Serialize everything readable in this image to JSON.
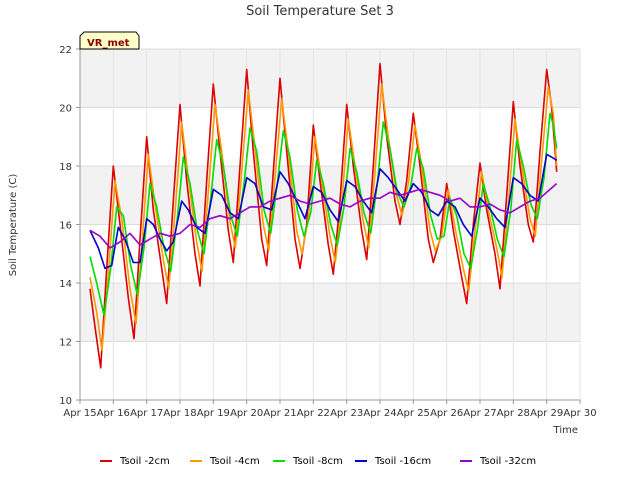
{
  "chart_data": {
    "type": "line",
    "title": "Soil Temperature Set 3",
    "xlabel": "Time",
    "ylabel": "Soil Temperature (C)",
    "station_tag": "VR_met",
    "ylim": [
      10,
      22
    ],
    "yticks": [
      10,
      12,
      14,
      16,
      18,
      20,
      22
    ],
    "xlim": [
      15,
      30
    ],
    "xticks": [
      15,
      16,
      17,
      18,
      19,
      20,
      21,
      22,
      23,
      24,
      25,
      26,
      27,
      28,
      29,
      30
    ],
    "xtick_labels": [
      "Apr 15",
      "Apr 16",
      "Apr 17",
      "Apr 18",
      "Apr 19",
      "Apr 20",
      "Apr 21",
      "Apr 22",
      "Apr 23",
      "Apr 24",
      "Apr 25",
      "Apr 26",
      "Apr 27",
      "Apr 28",
      "Apr 29",
      "Apr 30"
    ],
    "grid": true,
    "legend_position": "bottom",
    "series": [
      {
        "name": "Tsoil -2cm",
        "color": "#dd0000",
        "x": [
          15.3,
          15.45,
          15.62,
          15.8,
          16.0,
          16.2,
          16.45,
          16.62,
          16.8,
          17.0,
          17.2,
          17.45,
          17.6,
          17.8,
          18.0,
          18.2,
          18.45,
          18.6,
          18.8,
          19.0,
          19.2,
          19.45,
          19.6,
          19.8,
          20.0,
          20.2,
          20.45,
          20.6,
          20.8,
          21.0,
          21.2,
          21.45,
          21.6,
          21.8,
          22.0,
          22.2,
          22.45,
          22.6,
          22.8,
          23.0,
          23.2,
          23.45,
          23.6,
          23.8,
          24.0,
          24.2,
          24.45,
          24.6,
          24.8,
          25.0,
          25.2,
          25.45,
          25.6,
          25.8,
          26.0,
          26.2,
          26.45,
          26.6,
          26.8,
          27.0,
          27.2,
          27.45,
          27.6,
          27.8,
          28.0,
          28.2,
          28.45,
          28.6,
          28.8,
          29.0,
          29.15,
          29.3
        ],
        "values": [
          13.8,
          12.5,
          11.1,
          14.5,
          18.0,
          16.0,
          13.5,
          12.1,
          15.5,
          19.0,
          16.5,
          14.5,
          13.3,
          16.8,
          20.1,
          17.5,
          15.0,
          13.9,
          17.5,
          20.8,
          18.5,
          15.8,
          14.7,
          18.0,
          21.3,
          18.5,
          15.5,
          14.6,
          17.8,
          21.0,
          18.5,
          15.5,
          14.5,
          16.0,
          19.4,
          17.5,
          15.3,
          14.3,
          16.8,
          20.1,
          18.0,
          15.8,
          14.8,
          18.0,
          21.5,
          19.0,
          16.8,
          16.0,
          17.5,
          19.8,
          18.0,
          15.5,
          14.7,
          15.5,
          17.4,
          15.8,
          14.2,
          13.3,
          16.0,
          18.1,
          16.5,
          15.0,
          13.8,
          17.0,
          20.2,
          18.0,
          16.0,
          15.4,
          18.5,
          21.3,
          20.0,
          17.8
        ]
      },
      {
        "name": "Tsoil -4cm",
        "color": "#ff9900",
        "x": [
          15.3,
          15.5,
          15.66,
          15.85,
          16.05,
          16.25,
          16.5,
          16.68,
          16.85,
          17.05,
          17.25,
          17.5,
          17.66,
          17.85,
          18.05,
          18.25,
          18.5,
          18.66,
          18.85,
          19.05,
          19.25,
          19.5,
          19.66,
          19.85,
          20.05,
          20.25,
          20.5,
          20.66,
          20.85,
          21.05,
          21.25,
          21.5,
          21.66,
          21.85,
          22.05,
          22.25,
          22.5,
          22.66,
          22.85,
          23.05,
          23.25,
          23.5,
          23.66,
          23.85,
          24.05,
          24.25,
          24.5,
          24.66,
          24.85,
          25.05,
          25.25,
          25.5,
          25.66,
          25.85,
          26.05,
          26.25,
          26.5,
          26.66,
          26.85,
          27.05,
          27.25,
          27.5,
          27.66,
          27.85,
          28.05,
          28.25,
          28.5,
          28.66,
          28.85,
          29.05,
          29.2,
          29.3
        ],
        "values": [
          14.2,
          13.0,
          11.7,
          14.3,
          17.5,
          16.2,
          13.8,
          12.6,
          15.2,
          18.4,
          16.7,
          14.8,
          13.8,
          16.4,
          19.5,
          17.6,
          15.4,
          14.4,
          17.1,
          20.1,
          18.5,
          16.1,
          15.2,
          17.8,
          20.6,
          18.6,
          16.0,
          15.1,
          17.6,
          20.3,
          18.5,
          15.8,
          15.0,
          16.2,
          19.0,
          17.5,
          15.6,
          14.7,
          16.7,
          19.6,
          18.0,
          16.1,
          15.2,
          17.8,
          20.8,
          19.0,
          17.0,
          16.3,
          17.4,
          19.4,
          18.0,
          15.8,
          15.1,
          15.6,
          17.2,
          15.9,
          14.5,
          13.7,
          15.8,
          17.8,
          16.5,
          15.2,
          14.2,
          16.7,
          19.6,
          18.0,
          16.2,
          15.6,
          18.2,
          20.7,
          19.8,
          18.0
        ]
      },
      {
        "name": "Tsoil -8cm",
        "color": "#00dd00",
        "x": [
          15.3,
          15.5,
          15.72,
          15.92,
          16.1,
          16.3,
          16.52,
          16.72,
          16.92,
          17.1,
          17.3,
          17.52,
          17.72,
          17.92,
          18.1,
          18.3,
          18.52,
          18.72,
          18.92,
          19.1,
          19.3,
          19.52,
          19.72,
          19.92,
          20.1,
          20.3,
          20.52,
          20.72,
          20.92,
          21.1,
          21.3,
          21.52,
          21.72,
          21.92,
          22.1,
          22.3,
          22.52,
          22.72,
          22.92,
          23.1,
          23.3,
          23.52,
          23.72,
          23.92,
          24.1,
          24.3,
          24.52,
          24.72,
          24.92,
          25.1,
          25.3,
          25.52,
          25.72,
          25.92,
          26.1,
          26.3,
          26.52,
          26.72,
          26.92,
          27.1,
          27.3,
          27.52,
          27.72,
          27.92,
          28.1,
          28.3,
          28.52,
          28.72,
          28.92,
          29.1,
          29.2,
          29.3
        ],
        "values": [
          14.9,
          14.0,
          12.9,
          14.5,
          16.6,
          16.3,
          14.6,
          13.6,
          15.2,
          17.4,
          16.6,
          15.2,
          14.4,
          16.2,
          18.3,
          17.4,
          15.8,
          15.0,
          16.9,
          18.9,
          18.0,
          16.3,
          15.6,
          17.4,
          19.3,
          18.5,
          16.5,
          15.7,
          17.4,
          19.2,
          18.3,
          16.5,
          15.6,
          16.4,
          18.2,
          17.4,
          16.0,
          15.3,
          16.6,
          18.6,
          17.8,
          16.4,
          15.7,
          17.4,
          19.5,
          18.6,
          17.1,
          16.6,
          17.3,
          18.6,
          17.9,
          16.3,
          15.5,
          15.6,
          16.9,
          16.3,
          15.0,
          14.5,
          15.8,
          17.4,
          16.6,
          15.5,
          14.9,
          16.5,
          18.9,
          18.0,
          16.7,
          16.2,
          17.6,
          19.8,
          19.4,
          18.6
        ]
      },
      {
        "name": "Tsoil -16cm",
        "color": "#0000cc",
        "x": [
          15.3,
          15.55,
          15.75,
          15.95,
          16.15,
          16.35,
          16.6,
          16.8,
          17.0,
          17.2,
          17.4,
          17.6,
          17.8,
          18.05,
          18.25,
          18.5,
          18.75,
          19.0,
          19.25,
          19.5,
          19.75,
          20.0,
          20.25,
          20.5,
          20.75,
          21.0,
          21.25,
          21.5,
          21.75,
          22.0,
          22.25,
          22.5,
          22.75,
          23.0,
          23.25,
          23.5,
          23.75,
          24.0,
          24.25,
          24.5,
          24.75,
          25.0,
          25.25,
          25.5,
          25.75,
          26.0,
          26.25,
          26.5,
          26.75,
          27.0,
          27.25,
          27.5,
          27.75,
          28.0,
          28.25,
          28.5,
          28.75,
          29.0,
          29.15,
          29.3
        ],
        "values": [
          15.8,
          15.2,
          14.5,
          14.6,
          15.9,
          15.5,
          14.7,
          14.7,
          16.2,
          16.0,
          15.5,
          15.1,
          15.4,
          16.8,
          16.5,
          15.9,
          15.7,
          17.2,
          17.0,
          16.4,
          16.2,
          17.6,
          17.4,
          16.6,
          16.5,
          17.8,
          17.4,
          16.8,
          16.2,
          17.3,
          17.1,
          16.5,
          16.1,
          17.5,
          17.3,
          16.8,
          16.4,
          17.9,
          17.6,
          17.2,
          16.8,
          17.4,
          17.1,
          16.5,
          16.3,
          16.8,
          16.6,
          16.0,
          15.6,
          16.9,
          16.6,
          16.2,
          15.9,
          17.6,
          17.4,
          17.0,
          16.8,
          18.4,
          18.3,
          18.2
        ]
      },
      {
        "name": "Tsoil -32cm",
        "color": "#9900cc",
        "x": [
          15.3,
          15.6,
          15.9,
          16.2,
          16.5,
          16.8,
          17.1,
          17.4,
          17.7,
          18.0,
          18.3,
          18.6,
          18.9,
          19.2,
          19.5,
          19.8,
          20.1,
          20.4,
          20.7,
          21.0,
          21.3,
          21.6,
          21.9,
          22.2,
          22.5,
          22.8,
          23.1,
          23.4,
          23.7,
          24.0,
          24.3,
          24.6,
          24.9,
          25.2,
          25.5,
          25.8,
          26.1,
          26.4,
          26.7,
          27.0,
          27.3,
          27.6,
          27.9,
          28.2,
          28.5,
          28.8,
          29.1,
          29.3
        ],
        "values": [
          15.8,
          15.6,
          15.2,
          15.4,
          15.7,
          15.3,
          15.5,
          15.7,
          15.6,
          15.7,
          16.0,
          15.9,
          16.2,
          16.3,
          16.2,
          16.4,
          16.6,
          16.6,
          16.8,
          16.9,
          17.0,
          16.8,
          16.7,
          16.8,
          16.9,
          16.7,
          16.6,
          16.8,
          16.9,
          16.9,
          17.1,
          17.0,
          17.1,
          17.2,
          17.1,
          17.0,
          16.8,
          16.9,
          16.6,
          16.6,
          16.7,
          16.5,
          16.4,
          16.6,
          16.8,
          16.9,
          17.2,
          17.4
        ]
      }
    ]
  }
}
